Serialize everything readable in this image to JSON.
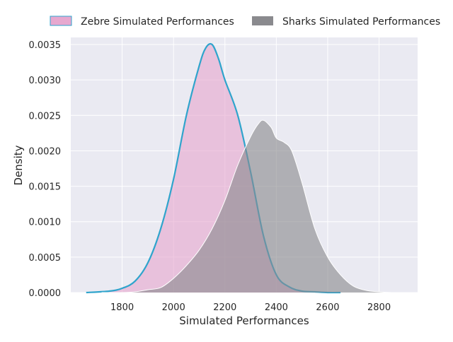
{
  "chart_data": {
    "type": "area",
    "title": "",
    "xlabel": "Simulated Performances",
    "ylabel": "Density",
    "xlim": [
      1600,
      2950
    ],
    "ylim": [
      0,
      0.0036
    ],
    "x_ticks": [
      1800,
      2000,
      2200,
      2400,
      2600,
      2800
    ],
    "y_ticks": [
      0.0,
      0.0005,
      0.001,
      0.0015,
      0.002,
      0.0025,
      0.003,
      0.0035
    ],
    "x_tick_labels": [
      "1800",
      "2000",
      "2200",
      "2400",
      "2600",
      "2800"
    ],
    "y_tick_labels": [
      "0.0000",
      "0.0005",
      "0.0010",
      "0.0015",
      "0.0020",
      "0.0025",
      "0.0030",
      "0.0035"
    ],
    "grid": true,
    "legend_position": "top",
    "series": [
      {
        "name": "Zebre Simulated Performances",
        "fill_color": "#e7a8cf",
        "line_color": "#2fa4cc",
        "x": [
          1660,
          1750,
          1800,
          1850,
          1900,
          1950,
          2000,
          2050,
          2100,
          2125,
          2150,
          2175,
          2200,
          2250,
          2300,
          2350,
          2400,
          2450,
          2500,
          2550,
          2600,
          2650
        ],
        "y": [
          0.0,
          2e-05,
          6e-05,
          0.00016,
          0.00042,
          0.0009,
          0.0016,
          0.0025,
          0.0032,
          0.00345,
          0.0035,
          0.0033,
          0.003,
          0.0025,
          0.0017,
          0.0008,
          0.00025,
          8e-05,
          2e-05,
          1e-05,
          0.0,
          0.0
        ]
      },
      {
        "name": "Sharks Simulated Performances",
        "fill_color": "#8a8a8e",
        "line_color": "#ffffff",
        "x": [
          1720,
          1800,
          1850,
          1900,
          1950,
          2000,
          2050,
          2100,
          2150,
          2200,
          2250,
          2300,
          2330,
          2350,
          2380,
          2400,
          2430,
          2460,
          2500,
          2550,
          2600,
          2650,
          2700,
          2750,
          2800,
          2850,
          2900
        ],
        "y": [
          0.0,
          0.0,
          1e-05,
          4e-05,
          7e-05,
          0.0002,
          0.00038,
          0.0006,
          0.0009,
          0.0013,
          0.0018,
          0.0022,
          0.00238,
          0.00243,
          0.00233,
          0.00218,
          0.00212,
          0.002,
          0.00155,
          0.0009,
          0.0005,
          0.00025,
          9e-05,
          3e-05,
          1e-05,
          0.0,
          0.0
        ]
      }
    ]
  },
  "colors": {
    "plot_background": "#eaeaf2",
    "grid": "#ffffff",
    "text": "#262626"
  }
}
